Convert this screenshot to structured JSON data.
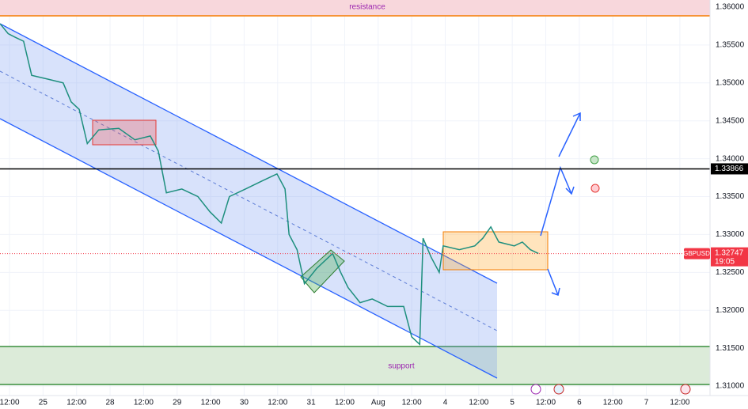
{
  "chart_data": {
    "type": "line",
    "series": [
      {
        "name": "GBPUSD",
        "color": "#1e8f7e",
        "x": [
          0.36,
          0.48,
          0.59,
          0.71,
          0.83,
          1.07,
          1.3,
          1.42,
          1.54,
          1.66,
          1.83,
          2.13,
          2.37,
          2.6,
          2.72,
          2.84,
          3.07,
          3.31,
          3.49,
          3.66,
          3.78,
          4.02,
          4.25,
          4.49,
          4.61,
          4.67,
          4.79,
          4.9,
          5.08,
          5.32,
          5.44,
          5.55,
          5.73,
          5.91,
          6.14,
          6.38,
          6.5,
          6.62,
          6.67,
          6.79,
          6.91,
          6.97,
          7.21,
          7.44,
          7.56,
          7.68,
          7.8,
          8.03,
          8.15,
          8.27,
          8.39
        ],
        "values": [
          1.3578,
          1.3565,
          1.356,
          1.3555,
          1.351,
          1.3505,
          1.35,
          1.3475,
          1.3465,
          1.342,
          1.3438,
          1.344,
          1.3425,
          1.343,
          1.341,
          1.3355,
          1.336,
          1.335,
          1.333,
          1.3315,
          1.335,
          1.336,
          1.337,
          1.338,
          1.336,
          1.33,
          1.328,
          1.3235,
          1.3255,
          1.3275,
          1.325,
          1.323,
          1.321,
          1.3215,
          1.3205,
          1.3205,
          1.3165,
          1.3155,
          1.3295,
          1.327,
          1.325,
          1.3285,
          1.328,
          1.3285,
          1.3295,
          1.331,
          1.329,
          1.3285,
          1.329,
          1.328,
          1.3275
        ]
      }
    ],
    "xlim": [
      0.358,
      10.95
    ],
    "xticks": [
      {
        "value": 0.5,
        "label": "12:00"
      },
      {
        "value": 1,
        "label": "25"
      },
      {
        "value": 1.5,
        "label": "12:00"
      },
      {
        "value": 2,
        "label": "28"
      },
      {
        "value": 2.5,
        "label": "12:00"
      },
      {
        "value": 3,
        "label": "29"
      },
      {
        "value": 3.5,
        "label": "12:00"
      },
      {
        "value": 4,
        "label": "30"
      },
      {
        "value": 4.5,
        "label": "12:00"
      },
      {
        "value": 5,
        "label": "31"
      },
      {
        "value": 5.5,
        "label": "12:00"
      },
      {
        "value": 6,
        "label": "Aug"
      },
      {
        "value": 6.5,
        "label": "12:00"
      },
      {
        "value": 7,
        "label": "4"
      },
      {
        "value": 7.5,
        "label": "12:00"
      },
      {
        "value": 8,
        "label": "5"
      },
      {
        "value": 8.5,
        "label": "12:00"
      },
      {
        "value": 9,
        "label": "6"
      },
      {
        "value": 9.5,
        "label": "12:00"
      },
      {
        "value": 10,
        "label": "7"
      },
      {
        "value": 10.5,
        "label": "12:00"
      }
    ],
    "ylim": [
      1.30875,
      1.36094
    ],
    "yticks": [
      {
        "value": 1.31,
        "label": "1.31000"
      },
      {
        "value": 1.315,
        "label": "1.31500"
      },
      {
        "value": 1.32,
        "label": "1.32000"
      },
      {
        "value": 1.325,
        "label": "1.32500"
      },
      {
        "value": 1.33,
        "label": "1.33000"
      },
      {
        "value": 1.335,
        "label": "1.33500"
      },
      {
        "value": 1.34,
        "label": "1.34000"
      },
      {
        "value": 1.345,
        "label": "1.34500"
      },
      {
        "value": 1.35,
        "label": "1.35000"
      },
      {
        "value": 1.355,
        "label": "1.35500"
      },
      {
        "value": 1.36,
        "label": "1.36000"
      }
    ],
    "grid": true,
    "resistance_label": "resistance",
    "support_label": "support",
    "level_line": 1.33866,
    "last_price": 1.32747,
    "countdown": "19:05"
  }
}
